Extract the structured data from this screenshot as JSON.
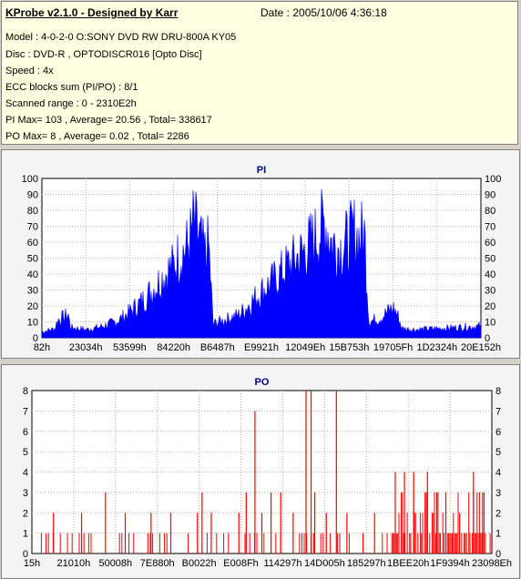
{
  "header": {
    "title": "KProbe v2.1.0 - Designed by Karr",
    "date": "Date : 2005/10/06 4:36:18",
    "lines": [
      "Model : 4-0-2-0 O:SONY    DVD RW DRU-800A  KY05",
      "Disc : DVD-R , OPTODISCR016 [Opto Disc]",
      "Speed : 4x",
      "ECC blocks sum (PI/PO) : 8/1",
      "Scanned range : 0 - 2310E2h",
      "PI Max= 103 , Average= 20.56 , Total= 338617",
      "PO Max= 8 , Average= 0.02 , Total= 2286"
    ]
  },
  "chart_data": [
    {
      "type": "area",
      "title": "PI",
      "color": "#0000ff",
      "ylim": [
        0,
        100
      ],
      "yticks": [
        0,
        10,
        20,
        30,
        40,
        50,
        60,
        70,
        80,
        90,
        100
      ],
      "xticks": [
        "82h",
        "23034h",
        "53599h",
        "84220h",
        "B6487h",
        "E9921h",
        "12049Eh",
        "15B753h",
        "19705Fh",
        "1D2324h",
        "20E152h"
      ],
      "envelope": [
        {
          "x": 0.0,
          "y": 5
        },
        {
          "x": 0.03,
          "y": 8
        },
        {
          "x": 0.035,
          "y": 15
        },
        {
          "x": 0.05,
          "y": 18
        },
        {
          "x": 0.06,
          "y": 20
        },
        {
          "x": 0.065,
          "y": 9
        },
        {
          "x": 0.1,
          "y": 7
        },
        {
          "x": 0.13,
          "y": 9
        },
        {
          "x": 0.17,
          "y": 14
        },
        {
          "x": 0.2,
          "y": 22
        },
        {
          "x": 0.23,
          "y": 32
        },
        {
          "x": 0.26,
          "y": 45
        },
        {
          "x": 0.28,
          "y": 55
        },
        {
          "x": 0.3,
          "y": 62
        },
        {
          "x": 0.31,
          "y": 70
        },
        {
          "x": 0.33,
          "y": 78
        },
        {
          "x": 0.34,
          "y": 88
        },
        {
          "x": 0.345,
          "y": 99
        },
        {
          "x": 0.36,
          "y": 84
        },
        {
          "x": 0.37,
          "y": 72
        },
        {
          "x": 0.38,
          "y": 80
        },
        {
          "x": 0.39,
          "y": 12
        },
        {
          "x": 0.42,
          "y": 16
        },
        {
          "x": 0.45,
          "y": 20
        },
        {
          "x": 0.47,
          "y": 28
        },
        {
          "x": 0.5,
          "y": 40
        },
        {
          "x": 0.53,
          "y": 50
        },
        {
          "x": 0.56,
          "y": 62
        },
        {
          "x": 0.59,
          "y": 72
        },
        {
          "x": 0.62,
          "y": 85
        },
        {
          "x": 0.635,
          "y": 93
        },
        {
          "x": 0.645,
          "y": 101
        },
        {
          "x": 0.66,
          "y": 82
        },
        {
          "x": 0.68,
          "y": 78
        },
        {
          "x": 0.7,
          "y": 84
        },
        {
          "x": 0.71,
          "y": 92
        },
        {
          "x": 0.72,
          "y": 86
        },
        {
          "x": 0.735,
          "y": 90
        },
        {
          "x": 0.745,
          "y": 14
        },
        {
          "x": 0.77,
          "y": 17
        },
        {
          "x": 0.79,
          "y": 23
        },
        {
          "x": 0.8,
          "y": 26
        },
        {
          "x": 0.81,
          "y": 20
        },
        {
          "x": 0.82,
          "y": 8
        },
        {
          "x": 0.85,
          "y": 7
        },
        {
          "x": 0.9,
          "y": 8
        },
        {
          "x": 0.95,
          "y": 9
        },
        {
          "x": 1.0,
          "y": 10
        }
      ]
    },
    {
      "type": "bar",
      "title": "PO",
      "color": "#ff0000",
      "ylim": [
        0,
        8
      ],
      "yticks": [
        0,
        1,
        2,
        3,
        4,
        5,
        6,
        7,
        8
      ],
      "xticks": [
        "15h",
        "21010h",
        "50008h",
        "7E880h",
        "B0022h",
        "E008Fh",
        "114297h",
        "14D005h",
        "185297h",
        "1BEE20h",
        "1F9394h",
        "23098Eh"
      ],
      "spikes": [
        {
          "x": 0.047,
          "y": 2
        },
        {
          "x": 0.108,
          "y": 2
        },
        {
          "x": 0.16,
          "y": 3
        },
        {
          "x": 0.203,
          "y": 2
        },
        {
          "x": 0.259,
          "y": 2
        },
        {
          "x": 0.302,
          "y": 2
        },
        {
          "x": 0.36,
          "y": 2
        },
        {
          "x": 0.37,
          "y": 3
        },
        {
          "x": 0.39,
          "y": 2
        },
        {
          "x": 0.45,
          "y": 2
        },
        {
          "x": 0.466,
          "y": 3
        },
        {
          "x": 0.485,
          "y": 7
        },
        {
          "x": 0.5,
          "y": 2
        },
        {
          "x": 0.52,
          "y": 3
        },
        {
          "x": 0.541,
          "y": 3
        },
        {
          "x": 0.568,
          "y": 2
        },
        {
          "x": 0.596,
          "y": 8
        },
        {
          "x": 0.607,
          "y": 8
        },
        {
          "x": 0.615,
          "y": 3
        },
        {
          "x": 0.64,
          "y": 2
        },
        {
          "x": 0.662,
          "y": 8
        },
        {
          "x": 0.685,
          "y": 2
        },
        {
          "x": 0.72,
          "y": 1
        },
        {
          "x": 0.745,
          "y": 2
        },
        {
          "x": 0.79,
          "y": 4
        },
        {
          "x": 0.81,
          "y": 4
        },
        {
          "x": 0.83,
          "y": 4
        },
        {
          "x": 0.86,
          "y": 4
        },
        {
          "x": 0.88,
          "y": 3
        },
        {
          "x": 0.9,
          "y": 3
        },
        {
          "x": 0.93,
          "y": 2
        },
        {
          "x": 0.96,
          "y": 4
        },
        {
          "x": 0.98,
          "y": 3
        }
      ]
    }
  ]
}
